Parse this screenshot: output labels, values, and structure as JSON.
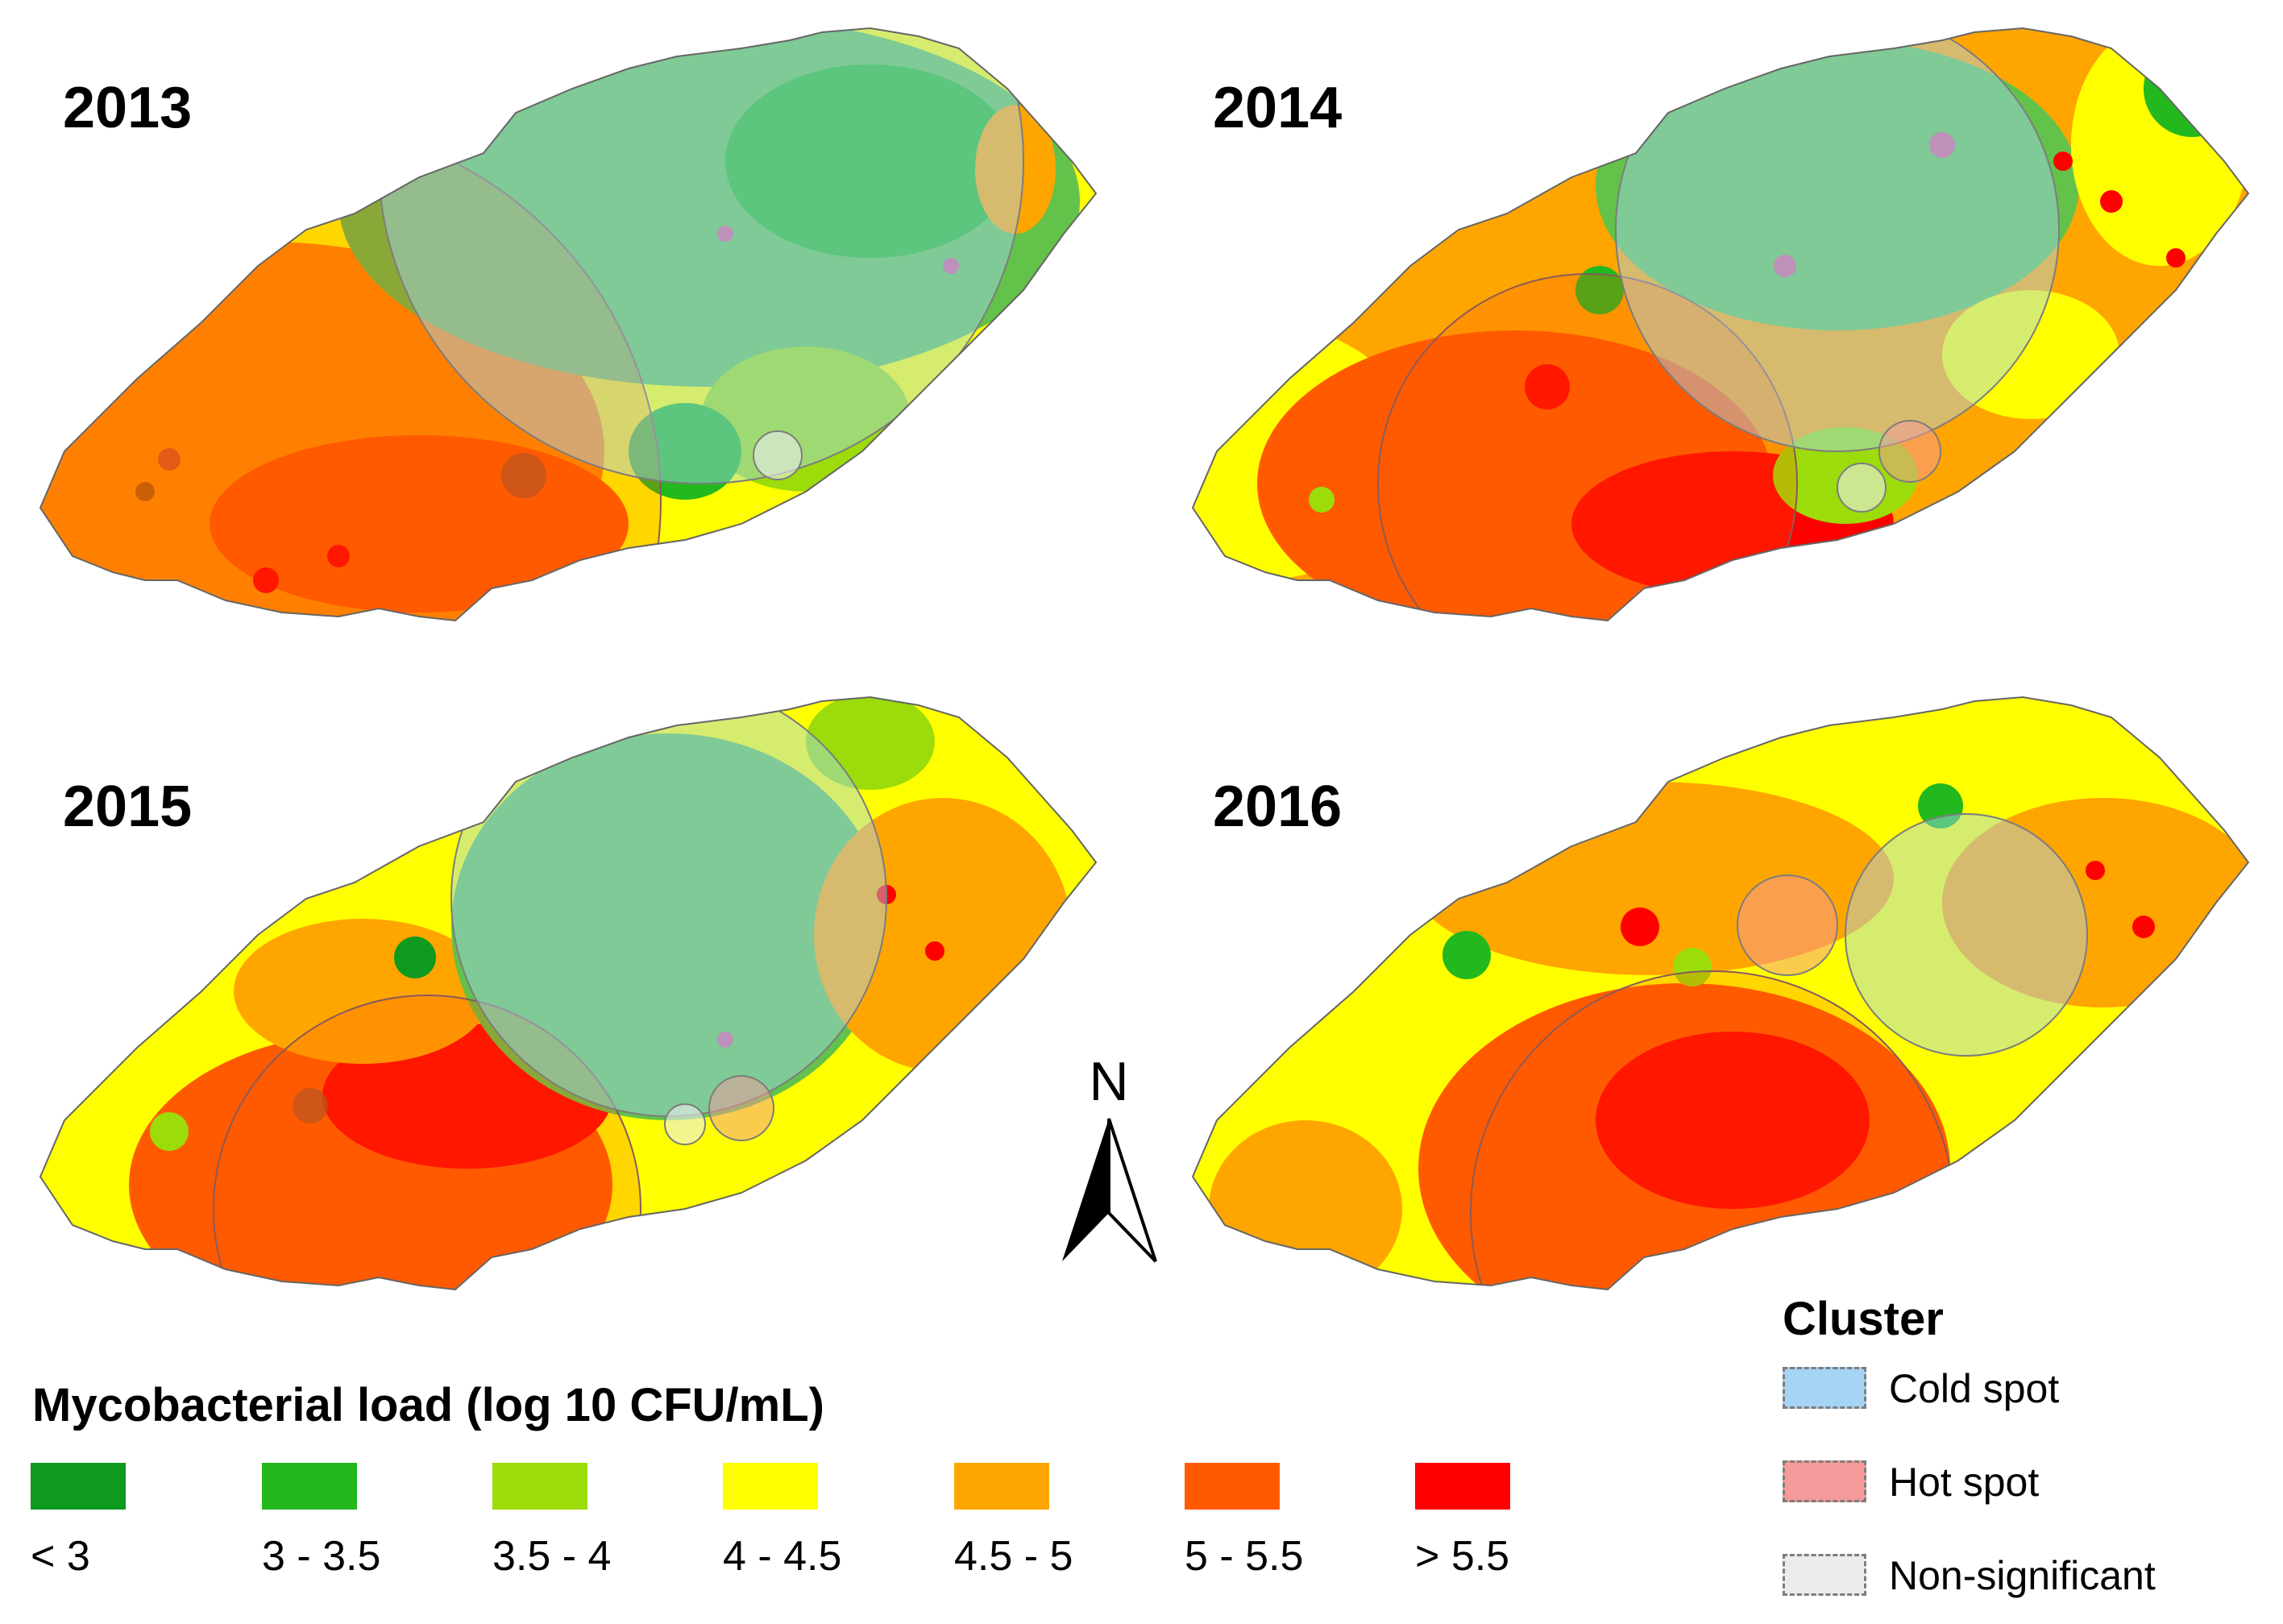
{
  "panels": [
    {
      "year": "2013"
    },
    {
      "year": "2014"
    },
    {
      "year": "2015"
    },
    {
      "year": "2016"
    }
  ],
  "north_arrow": {
    "label": "N"
  },
  "legend": {
    "title": "Mycobacterial load (log 10 CFU/mL)",
    "classes": [
      {
        "label": "< 3",
        "color": "#0e9a1e"
      },
      {
        "label": "3 - 3.5",
        "color": "#22b81e"
      },
      {
        "label": "3.5 - 4",
        "color": "#9bdc0a"
      },
      {
        "label": "4 - 4.5",
        "color": "#ffff00"
      },
      {
        "label": "4.5 - 5",
        "color": "#ffa500"
      },
      {
        "label": "5 - 5.5",
        "color": "#ff5a00"
      },
      {
        "label": "> 5.5",
        "color": "#ff0000"
      }
    ]
  },
  "cluster_legend": {
    "title": "Cluster",
    "items": [
      {
        "label": "Cold spot",
        "color": "#a5d4f5"
      },
      {
        "label": "Hot spot",
        "color": "#f59a9a"
      },
      {
        "label": "Non-significant",
        "color": "#ececec"
      }
    ]
  }
}
